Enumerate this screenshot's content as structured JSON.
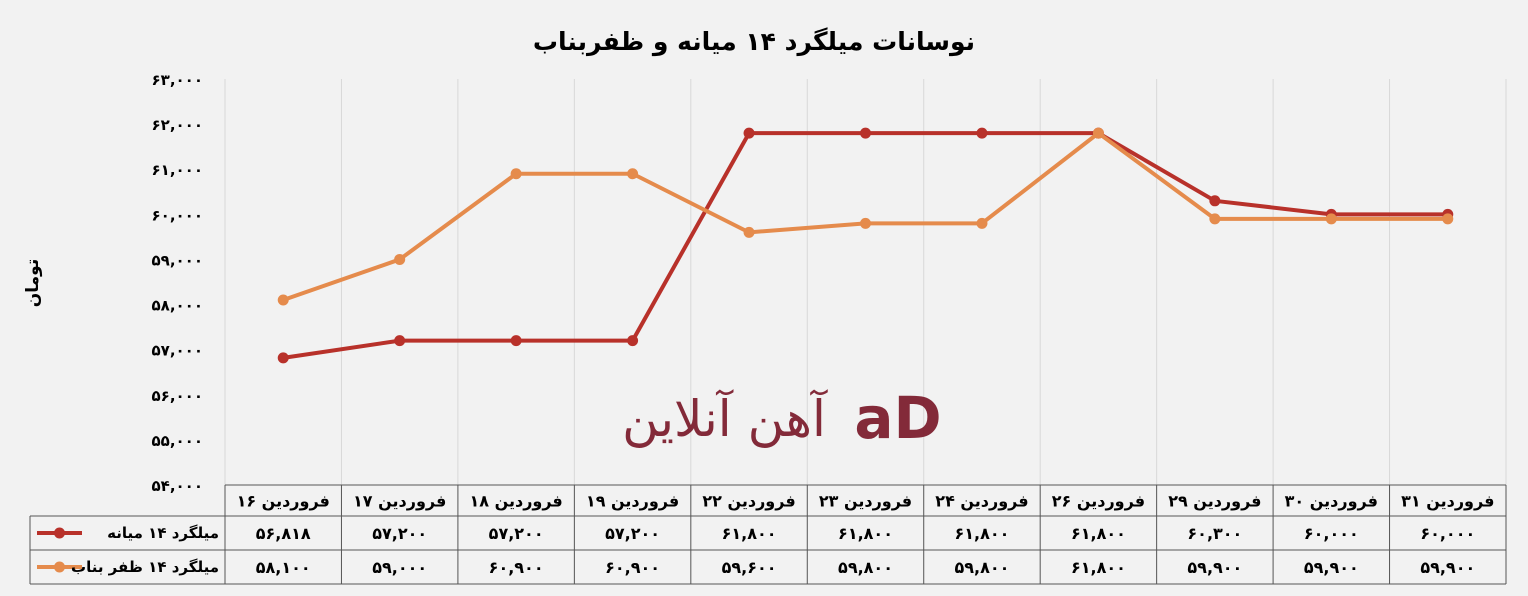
{
  "chart_data": {
    "type": "line",
    "title": "نوسانات میلگرد ۱۴ میانه و ظفربناب",
    "ylabel": "تومان",
    "xlabel": "",
    "ylim": [
      54000,
      63000
    ],
    "yticks": [
      54000,
      55000,
      56000,
      57000,
      58000,
      59000,
      60000,
      61000,
      62000,
      63000
    ],
    "ytick_labels": [
      "۵۴,۰۰۰",
      "۵۵,۰۰۰",
      "۵۶,۰۰۰",
      "۵۷,۰۰۰",
      "۵۸,۰۰۰",
      "۵۹,۰۰۰",
      "۶۰,۰۰۰",
      "۶۱,۰۰۰",
      "۶۲,۰۰۰",
      "۶۳,۰۰۰"
    ],
    "grid": true,
    "legend_placement": "data-table",
    "categories": [
      "فروردین ۱۶",
      "فروردین ۱۷",
      "فروردین ۱۸",
      "فروردین ۱۹",
      "فروردین ۲۲",
      "فروردین ۲۳",
      "فروردین ۲۴",
      "فروردین ۲۶",
      "فروردین ۲۹",
      "فروردین ۳۰",
      "فروردین ۳۱"
    ],
    "series": [
      {
        "name": "میلگرد ۱۴ میانه",
        "color": "#b8312a",
        "values": [
          56818,
          57200,
          57200,
          57200,
          61800,
          61800,
          61800,
          61800,
          60300,
          60000,
          60000
        ],
        "labels": [
          "۵۶,۸۱۸",
          "۵۷,۲۰۰",
          "۵۷,۲۰۰",
          "۵۷,۲۰۰",
          "۶۱,۸۰۰",
          "۶۱,۸۰۰",
          "۶۱,۸۰۰",
          "۶۱,۸۰۰",
          "۶۰,۳۰۰",
          "۶۰,۰۰۰",
          "۶۰,۰۰۰"
        ]
      },
      {
        "name": "میلگرد ۱۴ ظفر بناب",
        "color": "#e58b4c",
        "values": [
          58100,
          59000,
          60900,
          60900,
          59600,
          59800,
          59800,
          61800,
          59900,
          59900,
          59900
        ],
        "labels": [
          "۵۸,۱۰۰",
          "۵۹,۰۰۰",
          "۶۰,۹۰۰",
          "۶۰,۹۰۰",
          "۵۹,۶۰۰",
          "۵۹,۸۰۰",
          "۵۹,۸۰۰",
          "۶۱,۸۰۰",
          "۵۹,۹۰۰",
          "۵۹,۹۰۰",
          "۵۹,۹۰۰"
        ]
      }
    ]
  },
  "watermark": {
    "text": "آهن آنلاین",
    "mark": "aD",
    "color": "#7a1a2a"
  }
}
